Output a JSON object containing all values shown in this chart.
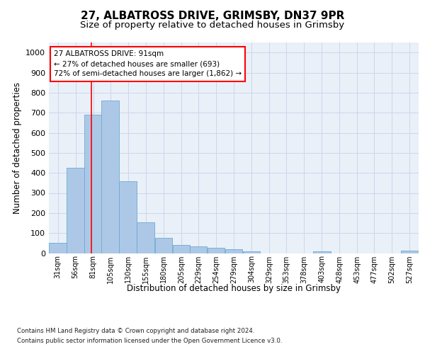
{
  "title": "27, ALBATROSS DRIVE, GRIMSBY, DN37 9PR",
  "subtitle": "Size of property relative to detached houses in Grimsby",
  "xlabel": "Distribution of detached houses by size in Grimsby",
  "ylabel": "Number of detached properties",
  "bar_color": "#adc8e6",
  "bar_edge_color": "#6aaad4",
  "grid_color": "#c8d8ec",
  "annotation_line1": "27 ALBATROSS DRIVE: 91sqm",
  "annotation_line2": "← 27% of detached houses are smaller (693)",
  "annotation_line3": "72% of semi-detached houses are larger (1,862) →",
  "property_line_x": 91,
  "categories": [
    "31sqm",
    "56sqm",
    "81sqm",
    "105sqm",
    "130sqm",
    "155sqm",
    "180sqm",
    "205sqm",
    "229sqm",
    "254sqm",
    "279sqm",
    "304sqm",
    "329sqm",
    "353sqm",
    "378sqm",
    "403sqm",
    "428sqm",
    "453sqm",
    "477sqm",
    "502sqm",
    "527sqm"
  ],
  "bin_starts": [
    31,
    56,
    81,
    105,
    130,
    155,
    180,
    205,
    229,
    254,
    279,
    304,
    329,
    353,
    378,
    403,
    428,
    453,
    477,
    502,
    527
  ],
  "bin_width": 25,
  "values": [
    50,
    425,
    690,
    760,
    360,
    155,
    75,
    40,
    35,
    25,
    18,
    10,
    0,
    0,
    0,
    8,
    0,
    0,
    0,
    0,
    12
  ],
  "ylim": [
    0,
    1050
  ],
  "yticks": [
    0,
    100,
    200,
    300,
    400,
    500,
    600,
    700,
    800,
    900,
    1000
  ],
  "xlim_left": 31,
  "xlim_right": 552,
  "footer_line1": "Contains HM Land Registry data © Crown copyright and database right 2024.",
  "footer_line2": "Contains public sector information licensed under the Open Government Licence v3.0.",
  "title_fontsize": 11,
  "subtitle_fontsize": 9.5,
  "background_color": "#ffffff",
  "plot_bg_color": "#eaf0f8"
}
